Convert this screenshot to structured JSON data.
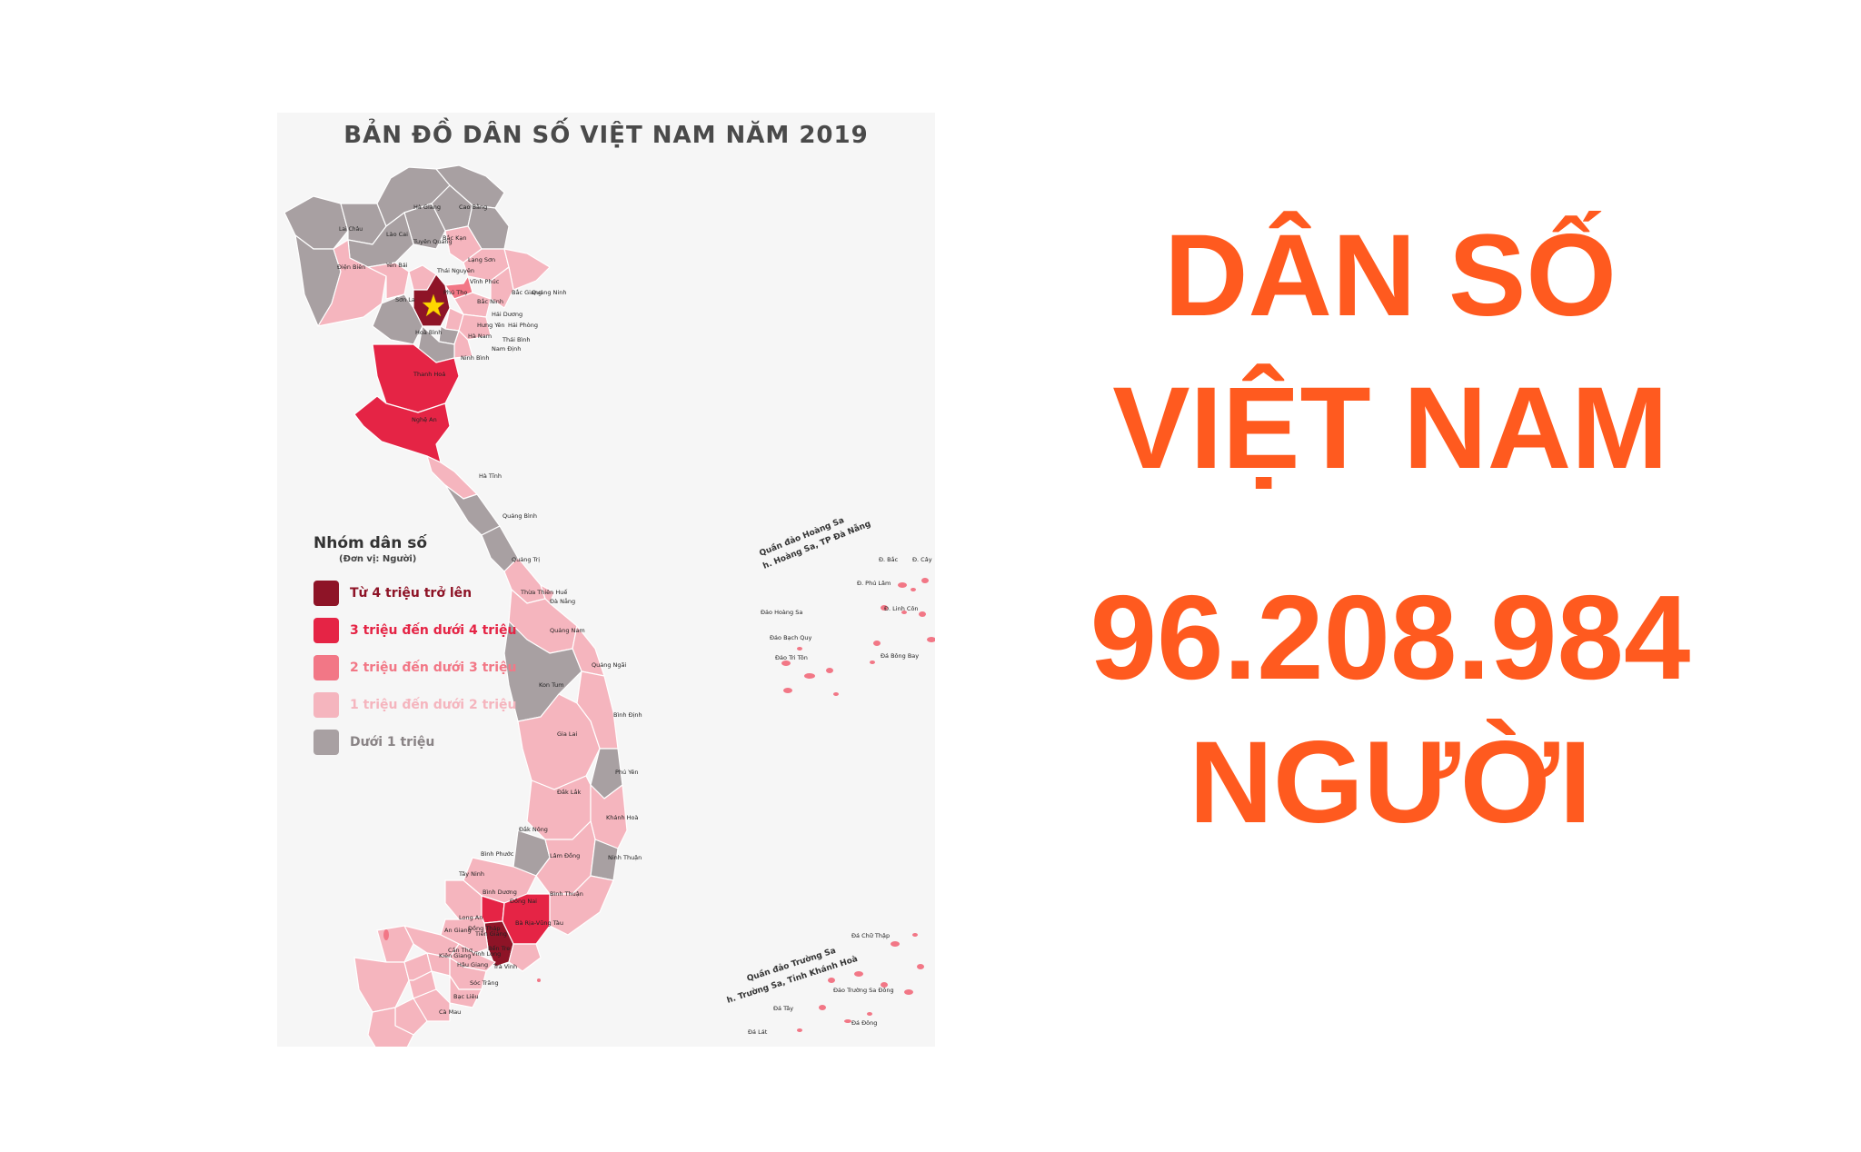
{
  "map": {
    "title": "BẢN ĐỒ DÂN SỐ VIỆT NAM NĂM 2019",
    "legend": {
      "title": "Nhóm dân số",
      "unit": "(Đơn vị: Người)",
      "items": [
        {
          "label": "Từ 4 triệu trở lên",
          "color": "#8e1427"
        },
        {
          "label": "3 triệu đến dưới 4 triệu",
          "color": "#e52445"
        },
        {
          "label": "2 triệu đến dưới 3 triệu",
          "color": "#f27786"
        },
        {
          "label": "1 triệu đến dưới 2 triệu",
          "color": "#f5b5be"
        },
        {
          "label": "Dưới 1 triệu",
          "color": "#a8a0a2"
        }
      ]
    },
    "provinces": [
      "Hà Giang",
      "Cao Bằng",
      "Lai Châu",
      "Lào Cai",
      "Bắc Kạn",
      "Tuyên Quang",
      "Điện Biên",
      "Yên Bái",
      "Lạng Sơn",
      "Thái Nguyên",
      "Sơn La",
      "Phú Thọ",
      "Vĩnh Phúc",
      "Bắc Giang",
      "Quảng Ninh",
      "Bắc Ninh",
      "Hải Dương",
      "Hải Phòng",
      "Hưng Yên",
      "Thái Bình",
      "Hà Nam",
      "Hoà Bình",
      "Nam Định",
      "Ninh Bình",
      "Thanh Hoá",
      "Nghệ An",
      "Hà Tĩnh",
      "Quảng Bình",
      "Quảng Trị",
      "Thừa Thiên Huế",
      "Đà Nẵng",
      "Quảng Nam",
      "Quảng Ngãi",
      "Kon Tum",
      "Bình Định",
      "Gia Lai",
      "Phú Yên",
      "Đắk Lắk",
      "Khánh Hoà",
      "Đắk Nông",
      "Ninh Thuận",
      "Lâm Đồng",
      "Bình Phước",
      "Tây Ninh",
      "Bình Dương",
      "Đồng Nai",
      "Bình Thuận",
      "Long An",
      "Bà Rịa-Vũng Tàu",
      "An Giang",
      "Đồng Tháp",
      "Tiền Giang",
      "Kiên Giang",
      "Bến Tre",
      "Cần Thơ",
      "Vĩnh Long",
      "Hậu Giang",
      "Trà Vinh",
      "Sóc Trăng",
      "Bạc Liêu",
      "Cà Mau"
    ],
    "hoang_sa": {
      "title_line1": "Quần đảo Hoàng Sa",
      "title_line2": "h. Hoàng Sa, TP Đà Nẵng",
      "islands": [
        "Đ. Bắc",
        "Đ. Cây",
        "Đ. Phú Lâm",
        "Đ. Linh Côn",
        "Đảo Hoàng Sa",
        "Đảo Bạch Quy",
        "Đảo Tri Tôn",
        "Đá Bông Bay"
      ]
    },
    "truong_sa": {
      "title_line1": "Quần đảo Trường Sa",
      "title_line2": "h. Trường Sa, Tỉnh Khánh Hoà",
      "islands": [
        "Đá Chữ Thập",
        "Đảo Trường Sa Đông",
        "Đá Tây",
        "Đá Đông",
        "Đá Lát"
      ]
    }
  },
  "headline": {
    "line1": "DÂN SỐ",
    "line2": "VIỆT NAM",
    "line3": "96.208.984",
    "line4": "NGƯỜI",
    "color": "#ff5a1f"
  }
}
